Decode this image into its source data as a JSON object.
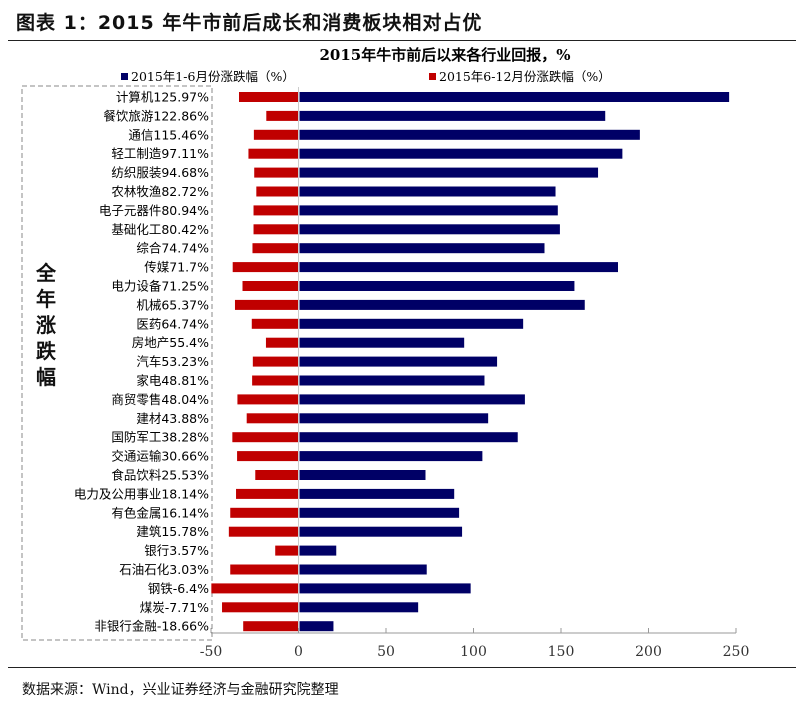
{
  "figure_title": "图表 1：2015 年牛市前后成长和消费板块相对占优",
  "source": "数据来源：Wind，兴业证券经济与金融研究院整理",
  "chart_data": {
    "type": "bar",
    "orientation": "horizontal",
    "title": "2015年牛市前后以来各行业回报，%",
    "side_label": "全年涨跌幅",
    "legend_position": "top",
    "colors": {
      "h1": "#000066",
      "h2": "#c00000"
    },
    "xlim": [
      -50,
      250
    ],
    "xticks": [
      -50,
      0,
      50,
      100,
      150,
      200,
      250
    ],
    "grid": false,
    "categories": [
      "计算机125.97%",
      "餐饮旅游122.86%",
      "通信115.46%",
      "轻工制造97.11%",
      "纺织服装94.68%",
      "农林牧渔82.72%",
      "电子元器件80.94%",
      "基础化工80.42%",
      "综合74.74%",
      "传媒71.7%",
      "电力设备71.25%",
      "机械65.37%",
      "医药64.74%",
      "房地产55.4%",
      "汽车53.23%",
      "家电48.81%",
      "商贸零售48.04%",
      "建材43.88%",
      "国防军工38.28%",
      "交通运输30.66%",
      "食品饮料25.53%",
      "电力及公用事业18.14%",
      "有色金属16.14%",
      "建筑15.78%",
      "银行3.57%",
      "石油石化3.03%",
      "钢铁-6.4%",
      "煤炭-7.71%",
      "非银行金融-18.66%"
    ],
    "series": [
      {
        "name": "2015年1-6月份涨跌幅（%）",
        "values": [
          245.5,
          174.7,
          194.5,
          184.5,
          170.6,
          146.3,
          147.6,
          148.8,
          140,
          182,
          157.1,
          163,
          127.8,
          94.1,
          112.9,
          105.7,
          128.8,
          107.8,
          124.7,
          104.5,
          72,
          88.4,
          91.2,
          92.9,
          21,
          72.7,
          97.8,
          67.8,
          19.4
        ]
      },
      {
        "name": "2015年6-12月份涨跌幅（%）",
        "values": [
          -34,
          -18.4,
          -25.5,
          -28.6,
          -25.3,
          -24.1,
          -25.7,
          -25.7,
          -26.3,
          -37.6,
          -32,
          -36.3,
          -26.7,
          -18.6,
          -26.1,
          -26.5,
          -34.9,
          -29.6,
          -37.8,
          -35.1,
          -24.7,
          -35.7,
          -39,
          -39.8,
          -13.3,
          -39,
          -49.8,
          -43.7,
          -31.6
        ]
      }
    ]
  }
}
